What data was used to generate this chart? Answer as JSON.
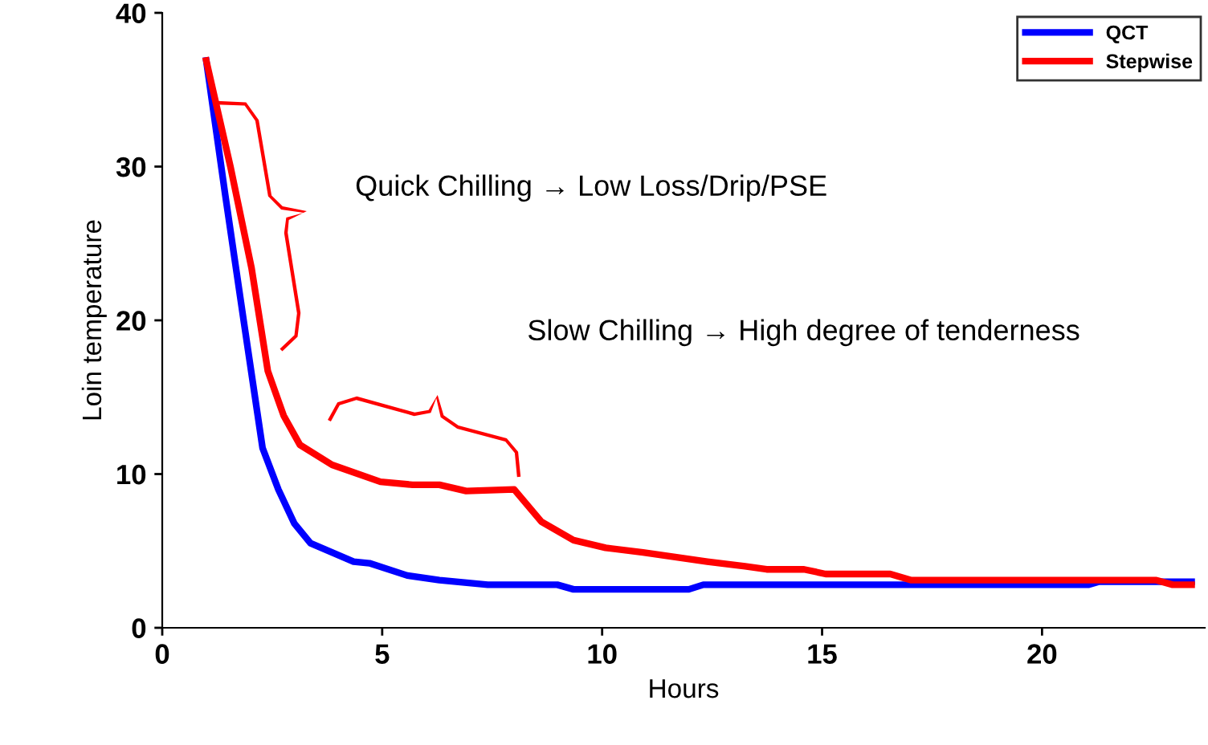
{
  "chart_data": {
    "type": "line",
    "xlabel": "Hours",
    "ylabel": "Loin temperature",
    "annotations": [
      "Quick Chilling → Low Loss/Drip/PSE",
      "Slow Chilling → High degree of tenderness"
    ],
    "series": [
      {
        "name": "QCT",
        "color": "#0000ff",
        "x": [
          1.0,
          1.43,
          1.85,
          2.28,
          2.64,
          3.0,
          3.37,
          3.86,
          4.35,
          4.71,
          5.57,
          6.3,
          7.4,
          8.98,
          9.35,
          11.97,
          12.3,
          21.05,
          21.3,
          23.4
        ],
        "values": [
          36.9,
          28.2,
          20.0,
          11.7,
          9.0,
          6.8,
          5.5,
          4.9,
          4.3,
          4.2,
          3.4,
          3.1,
          2.8,
          2.8,
          2.5,
          2.5,
          2.8,
          2.8,
          3.0,
          3.0
        ]
      },
      {
        "name": "Stepwise",
        "color": "#ff0000",
        "x": [
          1.0,
          1.55,
          2.03,
          2.4,
          2.76,
          3.13,
          3.86,
          4.96,
          5.69,
          6.3,
          6.91,
          8.0,
          8.62,
          9.35,
          10.08,
          10.93,
          11.66,
          12.39,
          13.25,
          13.74,
          14.59,
          15.08,
          16.55,
          17.03,
          22.6,
          22.97,
          23.4
        ],
        "values": [
          36.9,
          30.0,
          23.4,
          16.7,
          13.8,
          11.9,
          10.6,
          9.5,
          9.3,
          9.3,
          8.9,
          9.0,
          6.9,
          5.7,
          5.2,
          4.9,
          4.6,
          4.3,
          4.0,
          3.8,
          3.8,
          3.5,
          3.5,
          3.1,
          3.1,
          2.8,
          2.8
        ]
      }
    ],
    "xlim": [
      0,
      23.7
    ],
    "ylim": [
      0,
      40
    ],
    "xticks": [
      0,
      5,
      10,
      15,
      20
    ],
    "yticks": [
      0,
      10,
      20,
      30,
      40
    ],
    "legend": "top right",
    "grid": false,
    "marker": "none",
    "line_style": "solid"
  }
}
